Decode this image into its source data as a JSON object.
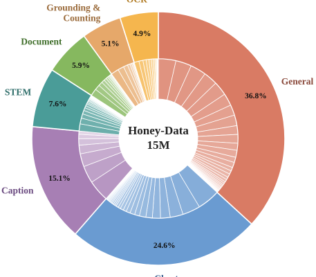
{
  "chart_data": {
    "type": "pie",
    "variant": "nested-donut",
    "center_label": {
      "line1": "Honey-Data",
      "line2": "15M"
    },
    "categories": [
      {
        "name": "General",
        "percent_label": "36.8%",
        "value": 36.8,
        "color": "#d97b64",
        "text_color": "#8a4a3c",
        "sub_weights": [
          10,
          9,
          9,
          8,
          8,
          7,
          6,
          6,
          5,
          5,
          4,
          4,
          3,
          3,
          2,
          2,
          2,
          1.5,
          1.5,
          1,
          1,
          0.8,
          0.8,
          0.6,
          0.6,
          0.5,
          0.5,
          0.4,
          0.4,
          0.3,
          0.3,
          0.3
        ]
      },
      {
        "name": "Chart",
        "percent_label": "24.6%",
        "value": 24.6,
        "color": "#6a9bd1",
        "text_color": "#3b5f8f",
        "sub_weights": [
          14,
          11,
          8,
          6,
          5,
          4,
          4,
          3,
          3,
          2.5,
          2,
          2,
          1.5,
          1.5,
          1,
          1,
          1,
          0.8,
          0.8,
          0.6,
          0.6,
          0.5,
          0.5,
          0.4,
          0.4
        ]
      },
      {
        "name": "Caption",
        "percent_label": "15.1%",
        "value": 15.1,
        "color": "#a77fb4",
        "text_color": "#6a4a80",
        "sub_weights": [
          20,
          16,
          12,
          8,
          6,
          4,
          3
        ]
      },
      {
        "name": "STEM",
        "percent_label": "7.6%",
        "value": 7.6,
        "color": "#4a9c98",
        "text_color": "#2f6e6a",
        "sub_weights": [
          10,
          8,
          6,
          5,
          4,
          3,
          3,
          2,
          2,
          1.5,
          1.5,
          1,
          1,
          0.8,
          0.8,
          0.6,
          0.6,
          0.5,
          0.5,
          0.4
        ]
      },
      {
        "name": "Document",
        "percent_label": "5.9%",
        "value": 5.9,
        "color": "#86b85f",
        "text_color": "#3f6e2a",
        "sub_weights": [
          14,
          10,
          8,
          6,
          5,
          4,
          3,
          2,
          2,
          1.5,
          1
        ]
      },
      {
        "name": "Grounding &\nCounting",
        "percent_label": "5.1%",
        "value": 5.1,
        "color": "#e6a86a",
        "text_color": "#9a6a3a",
        "sub_weights": [
          18,
          14,
          10,
          6,
          4,
          3,
          2,
          1.5
        ]
      },
      {
        "name": "OCR",
        "percent_label": "4.9%",
        "value": 4.9,
        "color": "#f5b64e",
        "text_color": "#b07a22",
        "sub_weights": [
          12,
          10,
          8,
          7,
          6,
          5,
          4,
          3,
          2,
          1.5,
          1,
          1
        ]
      }
    ]
  }
}
